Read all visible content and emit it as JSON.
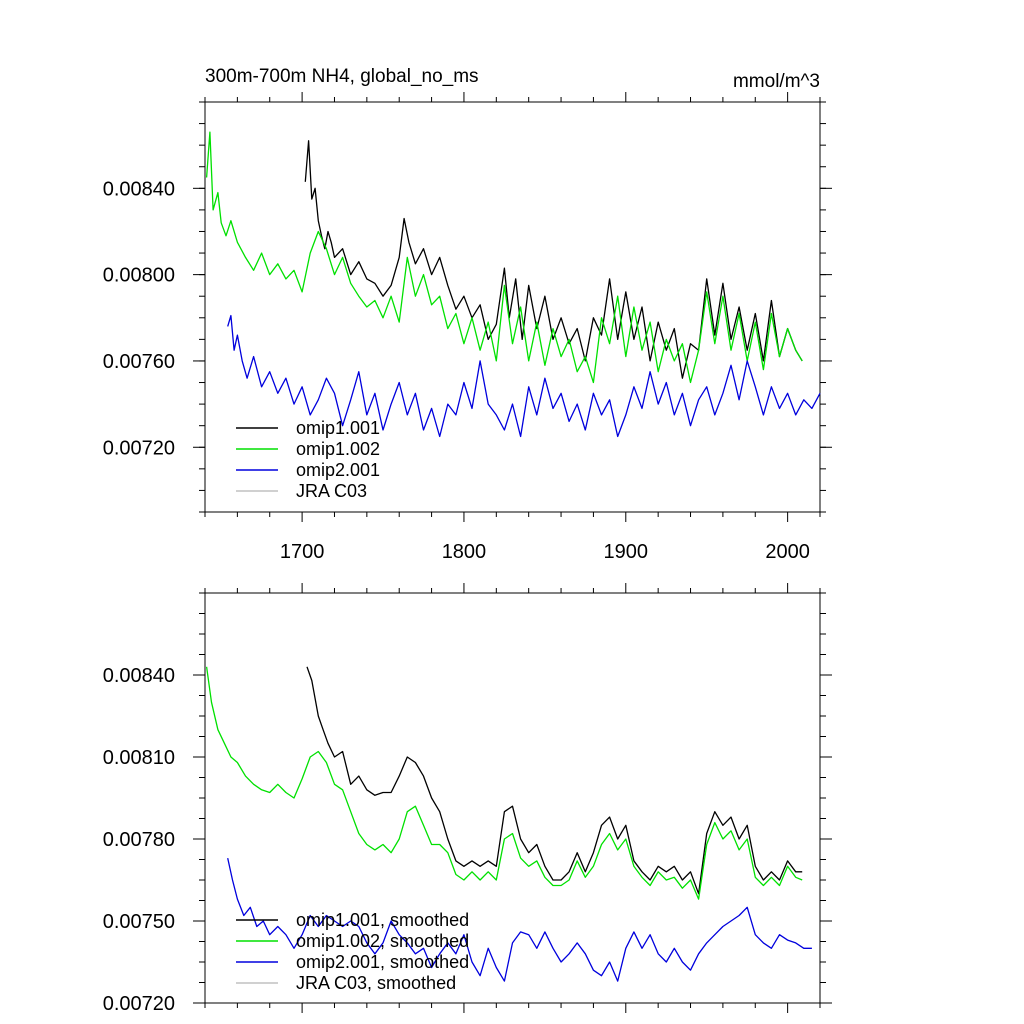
{
  "chart_data": [
    {
      "type": "line",
      "title": "300m-700m NH4, global_no_ms",
      "units": "mmol/m^3",
      "xlim": [
        1640,
        2020
      ],
      "ylim": [
        0.0069,
        0.0088
      ],
      "xticks": [
        "1700",
        "1800",
        "1900",
        "2000"
      ],
      "xtick_values": [
        1700,
        1800,
        1900,
        2000
      ],
      "yticks": [
        "0.00720",
        "0.00760",
        "0.00800",
        "0.00840"
      ],
      "ytick_values": [
        0.0072,
        0.0076,
        0.008,
        0.0084
      ],
      "legend_location": "bottom-left",
      "series": [
        {
          "name": "omip1.001",
          "color": "#000000",
          "x": [
            1702,
            1704,
            1706,
            1708,
            1710,
            1712,
            1714,
            1716,
            1718,
            1720,
            1725,
            1730,
            1735,
            1740,
            1745,
            1750,
            1755,
            1760,
            1763,
            1766,
            1770,
            1775,
            1780,
            1785,
            1790,
            1795,
            1800,
            1805,
            1810,
            1815,
            1820,
            1825,
            1828,
            1832,
            1836,
            1840,
            1845,
            1850,
            1855,
            1860,
            1865,
            1870,
            1875,
            1880,
            1885,
            1890,
            1895,
            1900,
            1905,
            1910,
            1915,
            1920,
            1925,
            1930,
            1935,
            1940,
            1945,
            1950,
            1955,
            1960,
            1965,
            1970,
            1975,
            1980,
            1985,
            1990,
            1995,
            2000,
            2005,
            2009
          ],
          "y": [
            0.00843,
            0.00862,
            0.00835,
            0.0084,
            0.00825,
            0.00818,
            0.00812,
            0.0082,
            0.00815,
            0.00808,
            0.00812,
            0.008,
            0.00806,
            0.00798,
            0.00796,
            0.0079,
            0.00795,
            0.00808,
            0.00826,
            0.00815,
            0.00805,
            0.00812,
            0.008,
            0.00808,
            0.00795,
            0.00784,
            0.0079,
            0.0078,
            0.00786,
            0.0077,
            0.00777,
            0.00803,
            0.0078,
            0.00798,
            0.0077,
            0.00795,
            0.00775,
            0.0079,
            0.0077,
            0.0078,
            0.00768,
            0.00775,
            0.0076,
            0.0078,
            0.00772,
            0.00798,
            0.0077,
            0.00792,
            0.0077,
            0.00785,
            0.0076,
            0.00778,
            0.00765,
            0.00775,
            0.00752,
            0.00768,
            0.00765,
            0.00798,
            0.00772,
            0.00796,
            0.0077,
            0.00785,
            0.00765,
            0.00782,
            0.0076,
            0.00788,
            0.00762,
            0.00775,
            0.00765,
            0.0076
          ]
        },
        {
          "name": "omip1.002",
          "color": "#00e000",
          "x": [
            1641,
            1643,
            1645,
            1648,
            1650,
            1653,
            1656,
            1660,
            1665,
            1670,
            1675,
            1680,
            1685,
            1690,
            1695,
            1700,
            1705,
            1710,
            1715,
            1720,
            1725,
            1730,
            1735,
            1740,
            1745,
            1750,
            1755,
            1760,
            1765,
            1770,
            1775,
            1780,
            1785,
            1790,
            1795,
            1800,
            1805,
            1810,
            1815,
            1820,
            1825,
            1830,
            1835,
            1840,
            1845,
            1850,
            1855,
            1860,
            1865,
            1870,
            1875,
            1880,
            1885,
            1890,
            1895,
            1900,
            1905,
            1910,
            1915,
            1920,
            1925,
            1930,
            1935,
            1940,
            1945,
            1950,
            1955,
            1960,
            1965,
            1970,
            1975,
            1980,
            1985,
            1990,
            1995,
            2000,
            2005,
            2009
          ],
          "y": [
            0.00845,
            0.00866,
            0.0083,
            0.00838,
            0.00824,
            0.00818,
            0.00825,
            0.00815,
            0.00808,
            0.00802,
            0.0081,
            0.008,
            0.00805,
            0.00798,
            0.00802,
            0.00792,
            0.0081,
            0.0082,
            0.00812,
            0.008,
            0.00808,
            0.00796,
            0.0079,
            0.00785,
            0.00788,
            0.0078,
            0.0079,
            0.00778,
            0.00808,
            0.0079,
            0.008,
            0.00786,
            0.0079,
            0.00775,
            0.00782,
            0.00768,
            0.0078,
            0.00765,
            0.00778,
            0.0076,
            0.00795,
            0.00768,
            0.00785,
            0.0076,
            0.00778,
            0.00758,
            0.00775,
            0.00762,
            0.0077,
            0.00755,
            0.00762,
            0.0075,
            0.0078,
            0.00768,
            0.0079,
            0.00762,
            0.00785,
            0.00765,
            0.00778,
            0.00755,
            0.0077,
            0.0076,
            0.00768,
            0.0075,
            0.00765,
            0.00792,
            0.00768,
            0.0079,
            0.00765,
            0.00782,
            0.0076,
            0.00778,
            0.00756,
            0.00782,
            0.00762,
            0.00775,
            0.00765,
            0.0076
          ]
        },
        {
          "name": "omip2.001",
          "color": "#0000dd",
          "x": [
            1654,
            1656,
            1658,
            1660,
            1663,
            1666,
            1670,
            1675,
            1680,
            1685,
            1690,
            1695,
            1700,
            1705,
            1710,
            1715,
            1720,
            1725,
            1730,
            1735,
            1740,
            1745,
            1750,
            1755,
            1760,
            1765,
            1770,
            1775,
            1780,
            1785,
            1790,
            1795,
            1800,
            1805,
            1810,
            1815,
            1820,
            1825,
            1830,
            1835,
            1840,
            1845,
            1850,
            1855,
            1860,
            1865,
            1870,
            1875,
            1880,
            1885,
            1890,
            1895,
            1900,
            1905,
            1910,
            1915,
            1920,
            1925,
            1930,
            1935,
            1940,
            1945,
            1950,
            1955,
            1960,
            1965,
            1970,
            1975,
            1980,
            1985,
            1990,
            1995,
            2000,
            2005,
            2010,
            2015,
            2020
          ],
          "y": [
            0.00776,
            0.00781,
            0.00765,
            0.00772,
            0.0076,
            0.00752,
            0.00762,
            0.00748,
            0.00755,
            0.00745,
            0.00752,
            0.0074,
            0.00748,
            0.00735,
            0.00742,
            0.00752,
            0.00745,
            0.0073,
            0.00742,
            0.00755,
            0.00735,
            0.00745,
            0.00728,
            0.0074,
            0.0075,
            0.00735,
            0.00745,
            0.00728,
            0.00738,
            0.00725,
            0.0074,
            0.00735,
            0.0075,
            0.00738,
            0.0076,
            0.0074,
            0.00735,
            0.00728,
            0.0074,
            0.00725,
            0.00748,
            0.00735,
            0.00752,
            0.00738,
            0.00745,
            0.00732,
            0.0074,
            0.00728,
            0.00745,
            0.00735,
            0.00742,
            0.00725,
            0.00735,
            0.00748,
            0.00738,
            0.00755,
            0.0074,
            0.0075,
            0.00735,
            0.00745,
            0.0073,
            0.00742,
            0.00748,
            0.00735,
            0.00745,
            0.00758,
            0.00742,
            0.0076,
            0.00748,
            0.00735,
            0.00748,
            0.00738,
            0.00745,
            0.00735,
            0.00742,
            0.00738,
            0.00745
          ]
        },
        {
          "name": "JRA C03",
          "color": "#c0c0c0",
          "x": [],
          "y": []
        }
      ]
    },
    {
      "type": "line",
      "title": "",
      "xlim": [
        1640,
        2020
      ],
      "ylim": [
        0.0072,
        0.0087
      ],
      "yticks": [
        "0.00720",
        "0.00750",
        "0.00780",
        "0.00810",
        "0.00840"
      ],
      "ytick_values": [
        0.0072,
        0.0075,
        0.0078,
        0.0081,
        0.0084
      ],
      "xtick_values": [
        1700,
        1800,
        1900,
        2000
      ],
      "legend_location": "bottom-left",
      "series": [
        {
          "name": "omip1.001, smoothed",
          "color": "#000000",
          "x": [
            1703,
            1706,
            1710,
            1713,
            1716,
            1720,
            1725,
            1730,
            1735,
            1740,
            1745,
            1750,
            1755,
            1760,
            1765,
            1770,
            1775,
            1780,
            1785,
            1790,
            1795,
            1800,
            1805,
            1810,
            1815,
            1820,
            1825,
            1830,
            1835,
            1840,
            1845,
            1850,
            1855,
            1860,
            1865,
            1870,
            1875,
            1880,
            1885,
            1890,
            1895,
            1900,
            1905,
            1910,
            1915,
            1920,
            1925,
            1930,
            1935,
            1940,
            1945,
            1950,
            1955,
            1960,
            1965,
            1970,
            1975,
            1980,
            1985,
            1990,
            1995,
            2000,
            2005,
            2009
          ],
          "y": [
            0.00843,
            0.00838,
            0.00825,
            0.0082,
            0.00815,
            0.0081,
            0.00812,
            0.008,
            0.00803,
            0.00798,
            0.00796,
            0.00797,
            0.00797,
            0.00803,
            0.0081,
            0.00808,
            0.00803,
            0.00795,
            0.0079,
            0.0078,
            0.00772,
            0.0077,
            0.00772,
            0.0077,
            0.00772,
            0.0077,
            0.0079,
            0.00792,
            0.0078,
            0.00775,
            0.00778,
            0.0077,
            0.00765,
            0.00765,
            0.00768,
            0.00775,
            0.00768,
            0.00775,
            0.00785,
            0.00788,
            0.0078,
            0.00785,
            0.00772,
            0.00768,
            0.00765,
            0.0077,
            0.00768,
            0.0077,
            0.00765,
            0.00768,
            0.0076,
            0.00782,
            0.0079,
            0.00785,
            0.00788,
            0.0078,
            0.00785,
            0.0077,
            0.00765,
            0.00768,
            0.00765,
            0.00772,
            0.00768,
            0.00768
          ]
        },
        {
          "name": "omip1.002, smoothed",
          "color": "#00e000",
          "x": [
            1641,
            1644,
            1648,
            1652,
            1656,
            1660,
            1665,
            1670,
            1675,
            1680,
            1685,
            1690,
            1695,
            1700,
            1705,
            1710,
            1715,
            1720,
            1725,
            1730,
            1735,
            1740,
            1745,
            1750,
            1755,
            1760,
            1765,
            1770,
            1775,
            1780,
            1785,
            1790,
            1795,
            1800,
            1805,
            1810,
            1815,
            1820,
            1825,
            1830,
            1835,
            1840,
            1845,
            1850,
            1855,
            1860,
            1865,
            1870,
            1875,
            1880,
            1885,
            1890,
            1895,
            1900,
            1905,
            1910,
            1915,
            1920,
            1925,
            1930,
            1935,
            1940,
            1945,
            1950,
            1955,
            1960,
            1965,
            1970,
            1975,
            1980,
            1985,
            1990,
            1995,
            2000,
            2005,
            2009
          ],
          "y": [
            0.00843,
            0.0083,
            0.0082,
            0.00815,
            0.0081,
            0.00808,
            0.00803,
            0.008,
            0.00798,
            0.00797,
            0.008,
            0.00797,
            0.00795,
            0.00802,
            0.0081,
            0.00812,
            0.00808,
            0.008,
            0.00798,
            0.0079,
            0.00782,
            0.00778,
            0.00776,
            0.00778,
            0.00775,
            0.0078,
            0.0079,
            0.00792,
            0.00785,
            0.00778,
            0.00778,
            0.00775,
            0.00767,
            0.00765,
            0.00768,
            0.00765,
            0.00768,
            0.00765,
            0.0078,
            0.00782,
            0.00773,
            0.0077,
            0.00772,
            0.00766,
            0.00763,
            0.00763,
            0.00765,
            0.00772,
            0.00766,
            0.0077,
            0.00778,
            0.00782,
            0.00776,
            0.0078,
            0.0077,
            0.00766,
            0.00763,
            0.00768,
            0.00765,
            0.00766,
            0.00762,
            0.00765,
            0.00758,
            0.00778,
            0.00786,
            0.0078,
            0.00783,
            0.00776,
            0.0078,
            0.00766,
            0.00763,
            0.00766,
            0.00763,
            0.0077,
            0.00766,
            0.00765
          ]
        },
        {
          "name": "omip2.001, smoothed",
          "color": "#0000dd",
          "x": [
            1654,
            1657,
            1660,
            1664,
            1668,
            1672,
            1676,
            1680,
            1685,
            1690,
            1695,
            1700,
            1705,
            1710,
            1715,
            1720,
            1725,
            1730,
            1735,
            1740,
            1745,
            1750,
            1755,
            1760,
            1765,
            1770,
            1775,
            1780,
            1785,
            1790,
            1795,
            1800,
            1805,
            1810,
            1815,
            1820,
            1825,
            1830,
            1835,
            1840,
            1845,
            1850,
            1855,
            1860,
            1865,
            1870,
            1875,
            1880,
            1885,
            1890,
            1895,
            1900,
            1905,
            1910,
            1915,
            1920,
            1925,
            1930,
            1935,
            1940,
            1945,
            1950,
            1955,
            1960,
            1965,
            1970,
            1975,
            1980,
            1985,
            1990,
            1995,
            2000,
            2005,
            2010,
            2015
          ],
          "y": [
            0.00773,
            0.00765,
            0.00758,
            0.00752,
            0.00755,
            0.00748,
            0.0075,
            0.00745,
            0.00748,
            0.00745,
            0.0074,
            0.00745,
            0.00752,
            0.00748,
            0.00752,
            0.0075,
            0.00748,
            0.0075,
            0.00748,
            0.00742,
            0.00738,
            0.00742,
            0.0075,
            0.00745,
            0.00742,
            0.00738,
            0.0074,
            0.00733,
            0.00738,
            0.00742,
            0.00738,
            0.00745,
            0.00735,
            0.0073,
            0.0074,
            0.00733,
            0.00728,
            0.00742,
            0.00746,
            0.00745,
            0.0074,
            0.00746,
            0.0074,
            0.00735,
            0.00738,
            0.00742,
            0.00738,
            0.00732,
            0.0073,
            0.00735,
            0.00728,
            0.0074,
            0.00746,
            0.0074,
            0.00745,
            0.00738,
            0.00735,
            0.0074,
            0.00735,
            0.00732,
            0.00738,
            0.00742,
            0.00745,
            0.00748,
            0.0075,
            0.00752,
            0.00755,
            0.00745,
            0.00742,
            0.0074,
            0.00745,
            0.00743,
            0.00742,
            0.0074,
            0.0074
          ]
        },
        {
          "name": "JRA C03, smoothed",
          "color": "#c0c0c0",
          "x": [],
          "y": []
        }
      ]
    }
  ]
}
